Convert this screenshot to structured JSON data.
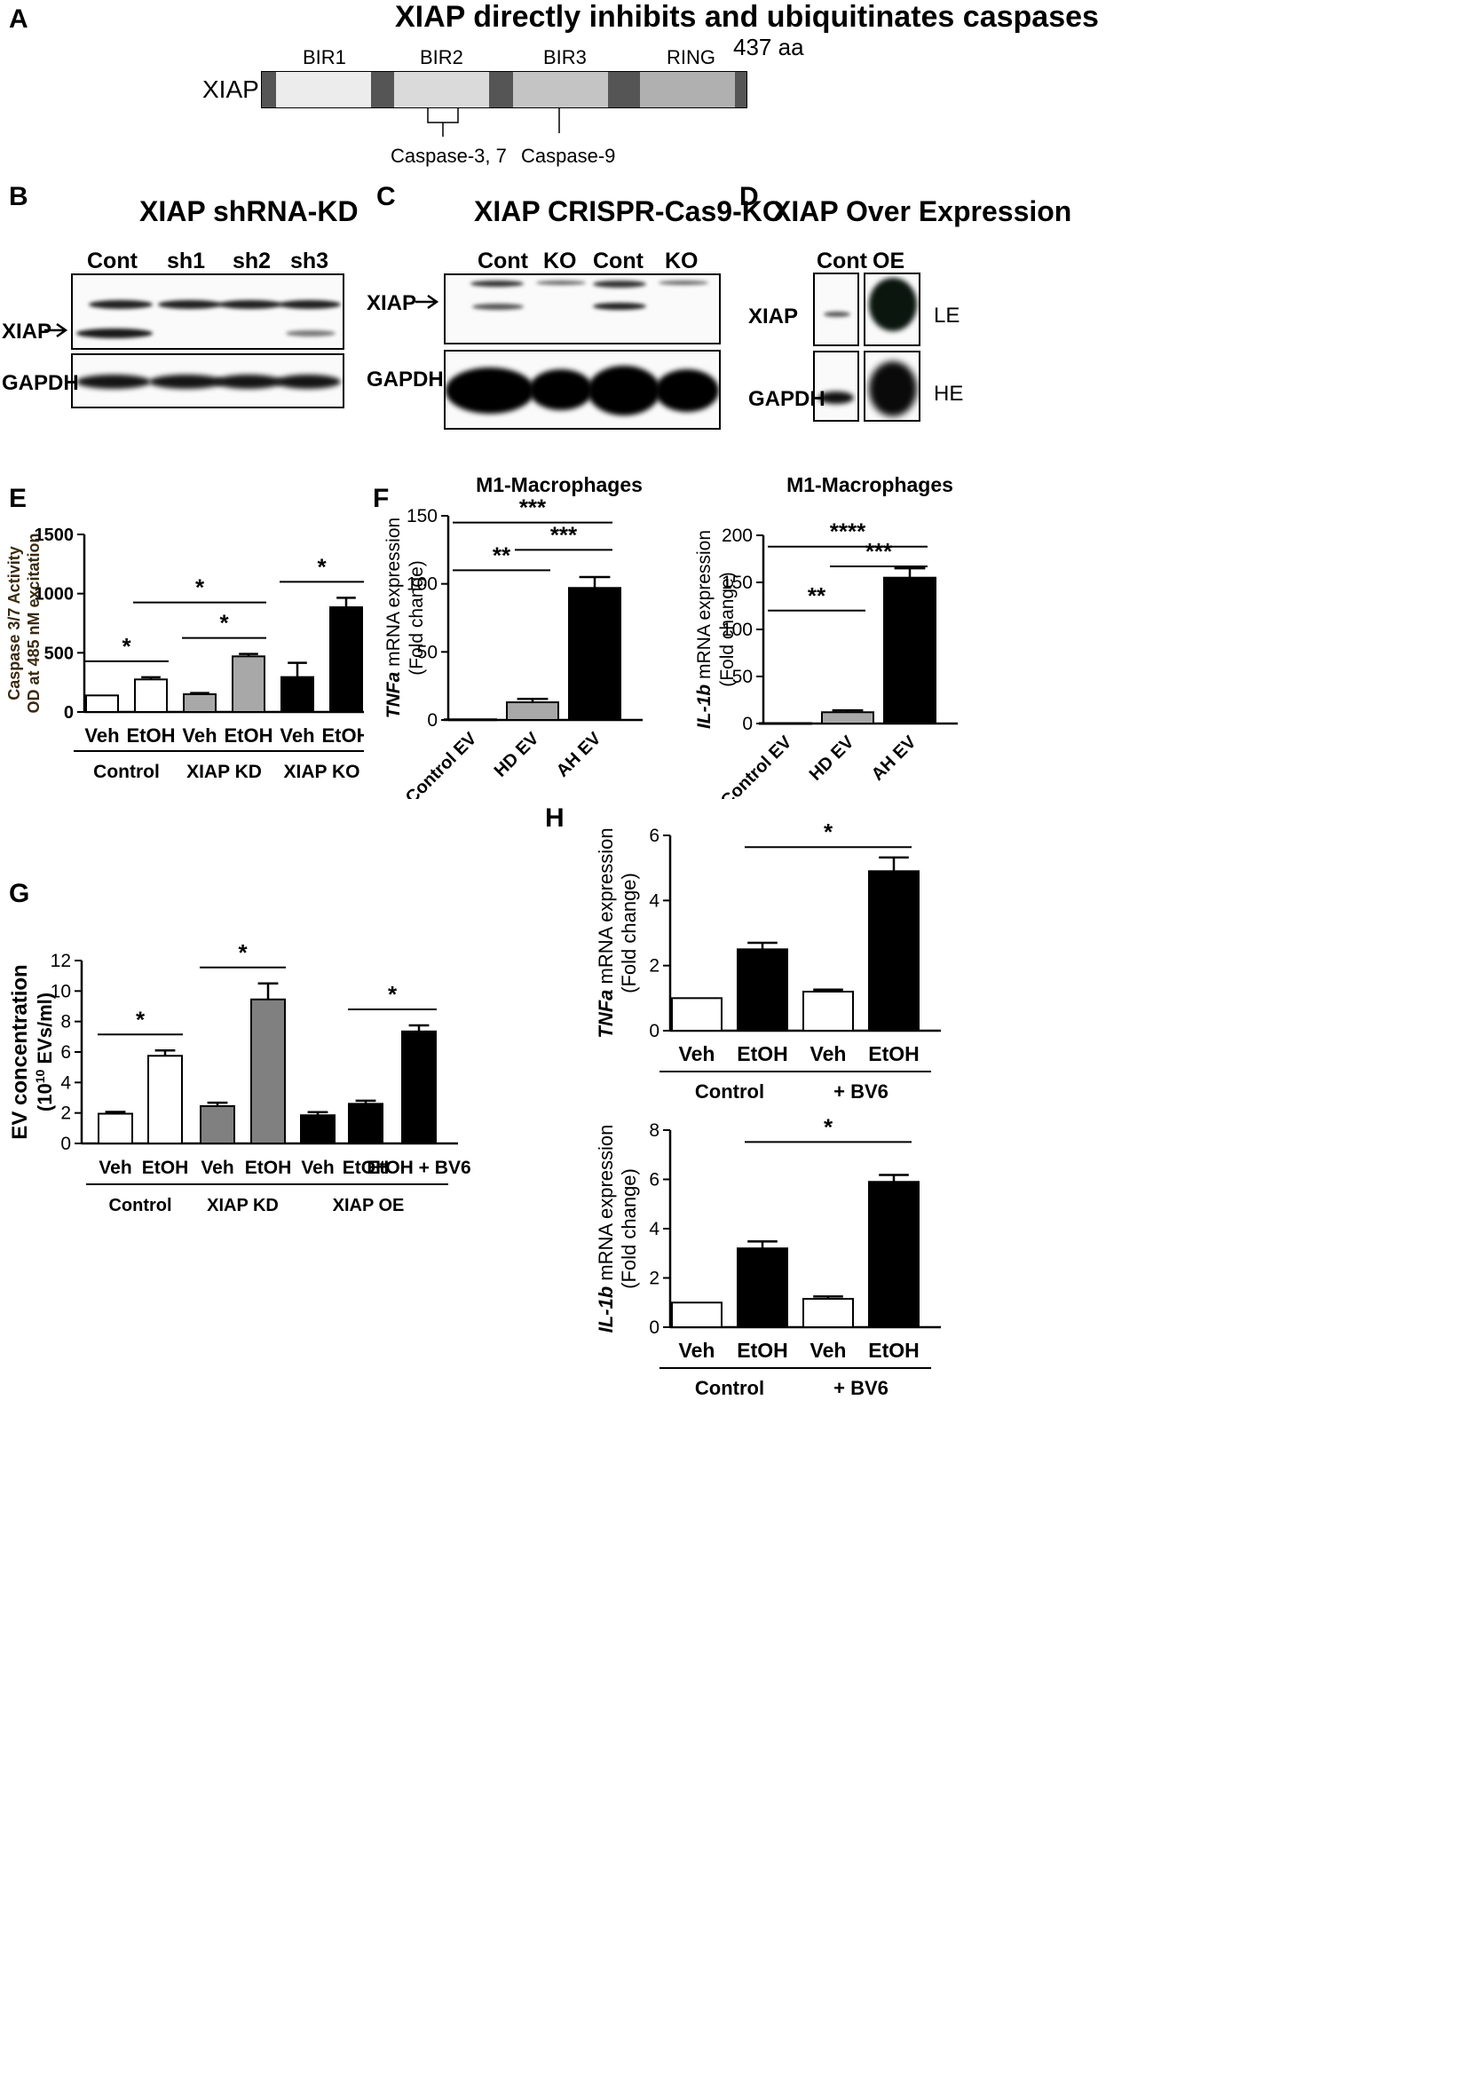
{
  "panels": {
    "A": "A",
    "B": "B",
    "C": "C",
    "D": "D",
    "E": "E",
    "F": "F",
    "G": "G",
    "H": "H"
  },
  "panel_a": {
    "title": "XIAP directly inhibits and ubiquitinates caspases",
    "protein": "XIAP",
    "length": "437 aa",
    "domains": [
      "BIR1",
      "BIR2",
      "BIR3",
      "RING"
    ],
    "target_bir2": "Caspase-3, 7",
    "target_bir3": "Caspase-9"
  },
  "panel_b": {
    "title": "XIAP shRNA-KD",
    "lanes": [
      "Cont",
      "sh1",
      "sh2",
      "sh3"
    ],
    "row1": "XIAP",
    "row2": "GAPDH"
  },
  "panel_c": {
    "title": "XIAP CRISPR-Cas9-KO",
    "lanes": [
      "Cont",
      "KO",
      "Cont",
      "KO"
    ],
    "row1": "XIAP",
    "row2": "GAPDH"
  },
  "panel_d": {
    "title": "XIAP Over Expression",
    "lanes": [
      "Cont",
      "OE"
    ],
    "row1": "XIAP",
    "row2": "GAPDH",
    "exp1": "LE",
    "exp2": "HE"
  },
  "chart_data": [
    {
      "id": "E",
      "type": "bar",
      "ylabel": [
        "Caspase 3/7 Activity",
        "OD at 485 nM excitation"
      ],
      "ylim": [
        0,
        1500
      ],
      "yticks": [
        0,
        500,
        1000,
        1500
      ],
      "categories": [
        "Veh",
        "EtOH",
        "Veh",
        "EtOH",
        "Veh",
        "EtOH"
      ],
      "groups": [
        "Control",
        "XIAP KD",
        "XIAP KO"
      ],
      "values": [
        140,
        275,
        150,
        470,
        295,
        885
      ],
      "errors": [
        0,
        18,
        10,
        20,
        120,
        80
      ],
      "colors": [
        "#ffffff",
        "#ffffff",
        "#a8a8a8",
        "#a8a8a8",
        "#000000",
        "#000000"
      ],
      "significance": [
        {
          "from": 0,
          "to": 1,
          "label": "*"
        },
        {
          "from": 2,
          "to": 3,
          "label": "*"
        },
        {
          "from": 1,
          "to": 3,
          "label": "*"
        },
        {
          "from": 4,
          "to": 5,
          "label": "*"
        }
      ]
    },
    {
      "id": "F1",
      "type": "bar",
      "title": "M1-Macrophages",
      "ylabel": [
        "mRNA expression",
        "(Fold change)"
      ],
      "ylabel_gene": "TNFa",
      "ylim": [
        0,
        150
      ],
      "yticks": [
        0,
        50,
        100,
        150
      ],
      "categories": [
        "Control EV",
        "HD EV",
        "AH EV"
      ],
      "values": [
        0.5,
        13,
        97
      ],
      "errors": [
        0,
        2.5,
        8
      ],
      "colors": [
        "#ffffff",
        "#a8a8a8",
        "#000000"
      ],
      "significance": [
        {
          "from": 0,
          "to": 1,
          "label": "**"
        },
        {
          "from": 1,
          "to": 2,
          "label": "***"
        },
        {
          "from": 0,
          "to": 2,
          "label": "***"
        }
      ]
    },
    {
      "id": "F2",
      "type": "bar",
      "title": "M1-Macrophages",
      "ylabel": [
        "mRNA expression",
        "(Fold change)"
      ],
      "ylabel_gene": "IL-1b",
      "ylim": [
        0,
        200
      ],
      "yticks": [
        0,
        50,
        100,
        150,
        200
      ],
      "categories": [
        "Control EV",
        "HD EV",
        "AH EV"
      ],
      "values": [
        0.5,
        12,
        155
      ],
      "errors": [
        0,
        2,
        10
      ],
      "colors": [
        "#ffffff",
        "#a8a8a8",
        "#000000"
      ],
      "significance": [
        {
          "from": 0,
          "to": 1,
          "label": "**"
        },
        {
          "from": 1,
          "to": 2,
          "label": "***"
        },
        {
          "from": 0,
          "to": 2,
          "label": "****"
        }
      ]
    },
    {
      "id": "G",
      "type": "bar",
      "ylabel": [
        "EV  concentration",
        "(10",
        "10",
        " EVs/ml)"
      ],
      "ylim": [
        0,
        12
      ],
      "yticks": [
        0,
        2,
        4,
        6,
        8,
        10,
        12
      ],
      "categories": [
        "Veh",
        "EtOH",
        "Veh",
        "EtOH",
        "Veh",
        "EtOH",
        "EtOH + BV6"
      ],
      "groups": [
        "Control",
        "XIAP KD",
        "XIAP OE"
      ],
      "values": [
        1.95,
        5.75,
        2.45,
        9.45,
        1.85,
        2.6,
        7.35
      ],
      "errors": [
        0.12,
        0.35,
        0.22,
        1.05,
        0.2,
        0.2,
        0.4
      ],
      "colors": [
        "#ffffff",
        "#ffffff",
        "#808080",
        "#808080",
        "#000000",
        "#000000",
        "#000000"
      ],
      "significance": [
        {
          "from": 0,
          "to": 1,
          "label": "*"
        },
        {
          "from": 2,
          "to": 3,
          "label": "*"
        },
        {
          "from": 5,
          "to": 6,
          "label": "*"
        }
      ]
    },
    {
      "id": "H1",
      "type": "bar",
      "ylabel": [
        "mRNA expression",
        "(Fold change)"
      ],
      "ylabel_gene": "TNFa",
      "ylim": [
        0,
        6
      ],
      "yticks": [
        0,
        2,
        4,
        6
      ],
      "categories": [
        "Veh",
        "EtOH",
        "Veh",
        "EtOH"
      ],
      "groups": [
        "Control",
        "+ BV6"
      ],
      "values": [
        1.0,
        2.5,
        1.2,
        4.9
      ],
      "errors": [
        0,
        0.2,
        0.06,
        0.42
      ],
      "colors": [
        "#ffffff",
        "#000000",
        "#ffffff",
        "#000000"
      ],
      "significance": [
        {
          "from": 1,
          "to": 3,
          "label": "*"
        }
      ]
    },
    {
      "id": "H2",
      "type": "bar",
      "ylabel": [
        "mRNA expression",
        "(Fold change)"
      ],
      "ylabel_gene": "IL-1b",
      "ylim": [
        0,
        8
      ],
      "yticks": [
        0,
        2,
        4,
        6,
        8
      ],
      "categories": [
        "Veh",
        "EtOH",
        "Veh",
        "EtOH"
      ],
      "groups": [
        "Control",
        "+ BV6"
      ],
      "values": [
        1.0,
        3.2,
        1.15,
        5.9
      ],
      "errors": [
        0,
        0.28,
        0.1,
        0.28
      ],
      "colors": [
        "#ffffff",
        "#000000",
        "#ffffff",
        "#000000"
      ],
      "significance": [
        {
          "from": 1,
          "to": 3,
          "label": "*"
        }
      ]
    }
  ]
}
